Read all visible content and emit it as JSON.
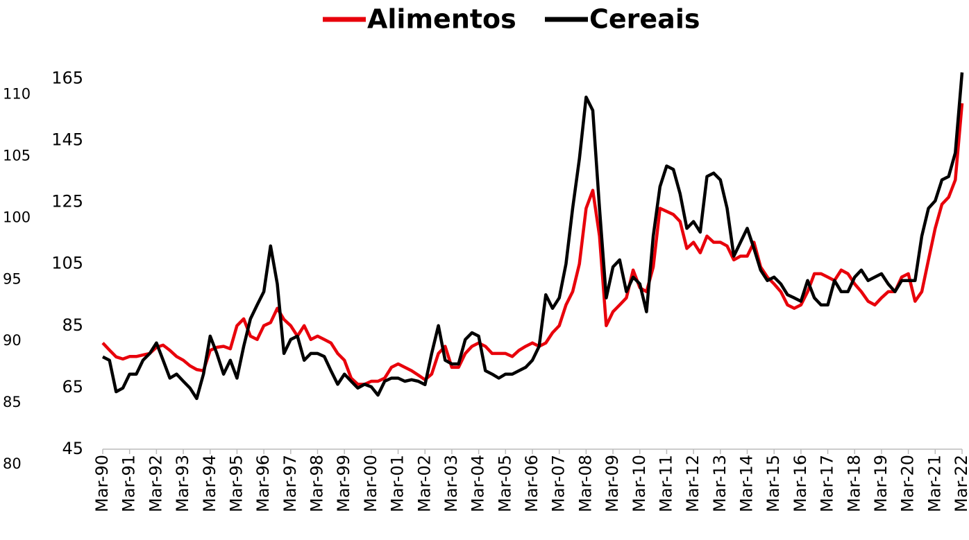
{
  "chart_data": {
    "type": "line",
    "x": [
      1990,
      1990.25,
      1990.5,
      1990.75,
      1991,
      1991.25,
      1991.5,
      1991.75,
      1992,
      1992.25,
      1992.5,
      1992.75,
      1993,
      1993.25,
      1993.5,
      1993.75,
      1994,
      1994.25,
      1994.5,
      1994.75,
      1995,
      1995.25,
      1995.5,
      1995.75,
      1996,
      1996.25,
      1996.5,
      1996.75,
      1997,
      1997.25,
      1997.5,
      1997.75,
      1998,
      1998.25,
      1998.5,
      1998.75,
      1999,
      1999.25,
      1999.5,
      1999.75,
      2000,
      2000.25,
      2000.5,
      2000.75,
      2001,
      2001.25,
      2001.5,
      2001.75,
      2002,
      2002.25,
      2002.5,
      2002.75,
      2003,
      2003.25,
      2003.5,
      2003.75,
      2004,
      2004.25,
      2004.5,
      2004.75,
      2005,
      2005.25,
      2005.5,
      2005.75,
      2006,
      2006.25,
      2006.5,
      2006.75,
      2007,
      2007.25,
      2007.5,
      2007.75,
      2008,
      2008.25,
      2008.5,
      2008.75,
      2009,
      2009.25,
      2009.5,
      2009.75,
      2010,
      2010.25,
      2010.5,
      2010.75,
      2011,
      2011.25,
      2011.5,
      2011.75,
      2012,
      2012.25,
      2012.5,
      2012.75,
      2013,
      2013.25,
      2013.5,
      2013.75,
      2014,
      2014.25,
      2014.5,
      2014.75,
      2015,
      2015.25,
      2015.5,
      2015.75,
      2016,
      2016.25,
      2016.5,
      2016.75,
      2017,
      2017.25,
      2017.5,
      2017.75,
      2018,
      2018.25,
      2018.5,
      2018.75,
      2019,
      2019.25,
      2019.5,
      2019.75,
      2020,
      2020.25,
      2020.5,
      2020.75,
      2021,
      2021.25,
      2021.5,
      2021.75,
      2022
    ],
    "series": [
      {
        "name": "Alimentos",
        "color": "#e8000b",
        "values": [
          79.4,
          77.1,
          74.9,
          74.2,
          75,
          75,
          75.5,
          76,
          78,
          78.7,
          77,
          75,
          73.8,
          72,
          70.8,
          70.4,
          77,
          78,
          78.3,
          77.5,
          85,
          87.2,
          81.6,
          80.5,
          85,
          86,
          90.6,
          87,
          85,
          81.6,
          85,
          80.5,
          81.6,
          80.5,
          79.4,
          76,
          73.8,
          68,
          66,
          66,
          67,
          67,
          68,
          71.5,
          72.6,
          71.5,
          70.4,
          69,
          67.5,
          69.3,
          76,
          78.3,
          71.5,
          71.5,
          76,
          78.3,
          79.4,
          78.3,
          76,
          76,
          76,
          75,
          77,
          78.3,
          79.4,
          78.3,
          79.4,
          82.7,
          85,
          91.7,
          96,
          105,
          123,
          128.8,
          114,
          85,
          89.5,
          91.7,
          94,
          103,
          97.3,
          96,
          104,
          123,
          122,
          121,
          118.7,
          110,
          112,
          108.6,
          114,
          112,
          112,
          110.8,
          106.3,
          107.5,
          107.5,
          112,
          104,
          100.7,
          98.5,
          96,
          91.7,
          90.6,
          91.7,
          96,
          101.8,
          101.8,
          100.7,
          99.6,
          103,
          101.8,
          98.5,
          96,
          92.9,
          91.7,
          94,
          96,
          96,
          100.7,
          101.8,
          92.9,
          96,
          106.3,
          116.5,
          124.3,
          126.6,
          132.2,
          157
        ]
      },
      {
        "name": "Cereais",
        "color": "#000000",
        "values": [
          74.9,
          73.8,
          63.6,
          64.8,
          69.3,
          69.3,
          73.8,
          76,
          79.4,
          73.8,
          68,
          69.3,
          67,
          64.8,
          61.4,
          69.3,
          81.6,
          76,
          69.3,
          73.8,
          68,
          78.3,
          87.2,
          91.7,
          96,
          110.8,
          98.5,
          76,
          80.5,
          81.6,
          73.8,
          76,
          76,
          75,
          70.4,
          66,
          69.3,
          67,
          64.8,
          66,
          65.2,
          62.5,
          67,
          68,
          68,
          67,
          67.5,
          67,
          65.9,
          76,
          85,
          73.8,
          72.6,
          72.6,
          80.5,
          82.7,
          81.6,
          70.4,
          69.3,
          68,
          69.3,
          69.3,
          70.4,
          71.5,
          73.8,
          78.3,
          95,
          90.6,
          94,
          105,
          123,
          139,
          159,
          154.7,
          123,
          94,
          104,
          106.3,
          96,
          100.7,
          98.5,
          89.5,
          114,
          130,
          136.7,
          135.6,
          127.7,
          116.5,
          118.7,
          115.3,
          133.3,
          134.4,
          132.2,
          123,
          107.5,
          112,
          116.5,
          110,
          103,
          99.6,
          100.7,
          98.5,
          95,
          94,
          92.9,
          99.6,
          94,
          91.7,
          91.7,
          99.6,
          96,
          96,
          100.7,
          103,
          99.6,
          100.7,
          101.8,
          98.5,
          96,
          99.6,
          99.6,
          99.6,
          114,
          123,
          125.4,
          132.2,
          133.3,
          141,
          167
        ]
      }
    ],
    "xlim": [
      1990,
      2022
    ],
    "xticks": [
      {
        "value": 1990,
        "label": "Mar-90"
      },
      {
        "value": 1991,
        "label": "Mar-91"
      },
      {
        "value": 1992,
        "label": "Mar-92"
      },
      {
        "value": 1993,
        "label": "Mar-93"
      },
      {
        "value": 1994,
        "label": "Mar-94"
      },
      {
        "value": 1995,
        "label": "Mar-95"
      },
      {
        "value": 1996,
        "label": "Mar-96"
      },
      {
        "value": 1997,
        "label": "Mar-97"
      },
      {
        "value": 1998,
        "label": "Mar-98"
      },
      {
        "value": 1999,
        "label": "Mar-99"
      },
      {
        "value": 2000,
        "label": "Mar-00"
      },
      {
        "value": 2001,
        "label": "Mar-01"
      },
      {
        "value": 2002,
        "label": "Mar-02"
      },
      {
        "value": 2003,
        "label": "Mar-03"
      },
      {
        "value": 2004,
        "label": "Mar-04"
      },
      {
        "value": 2005,
        "label": "Mar-05"
      },
      {
        "value": 2006,
        "label": "Mar-06"
      },
      {
        "value": 2007,
        "label": "Mar-07"
      },
      {
        "value": 2008,
        "label": "Mar-08"
      },
      {
        "value": 2009,
        "label": "Mar-09"
      },
      {
        "value": 2010,
        "label": "Mar-10"
      },
      {
        "value": 2011,
        "label": "Mar-11"
      },
      {
        "value": 2012,
        "label": "Mar-12"
      },
      {
        "value": 2013,
        "label": "Mar-13"
      },
      {
        "value": 2014,
        "label": "Mar-14"
      },
      {
        "value": 2015,
        "label": "Mar-15"
      },
      {
        "value": 2016,
        "label": "Mar-16"
      },
      {
        "value": 2017,
        "label": "Mar-17"
      },
      {
        "value": 2018,
        "label": "Mar-18"
      },
      {
        "value": 2019,
        "label": "Mar-19"
      },
      {
        "value": 2020,
        "label": "Mar-20"
      },
      {
        "value": 2021,
        "label": "Mar-21"
      },
      {
        "value": 2022,
        "label": "Mar-22"
      }
    ],
    "ylim": [
      45,
      168
    ],
    "yticks": [
      45,
      65,
      85,
      105,
      125,
      145,
      165
    ],
    "y2lim": [
      80,
      112
    ],
    "y2ticks": [
      80,
      85,
      90,
      95,
      100,
      105,
      110
    ],
    "legend": "top"
  }
}
